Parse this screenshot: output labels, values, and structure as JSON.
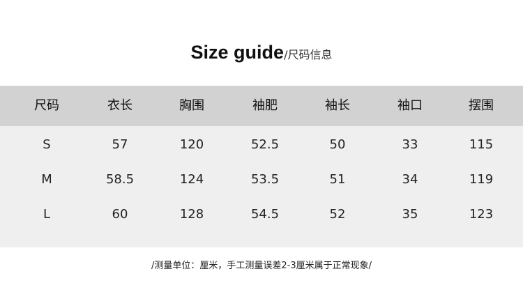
{
  "title": {
    "en": "Size guide",
    "cn": "/尺码信息"
  },
  "table": {
    "headers": [
      "尺码",
      "衣长",
      "胸围",
      "袖肥",
      "袖长",
      "袖口",
      "摆围"
    ],
    "rows": [
      [
        "S",
        "57",
        "120",
        "52.5",
        "50",
        "33",
        "115"
      ],
      [
        "M",
        "58.5",
        "124",
        "53.5",
        "51",
        "34",
        "119"
      ],
      [
        "L",
        "60",
        "128",
        "54.5",
        "52",
        "35",
        "123"
      ]
    ]
  },
  "note": "/测量单位：厘米，手工测量误差2-3厘米属于正常现象/",
  "colors": {
    "header_bg": "#d2d2d2",
    "body_bg": "#efefef"
  }
}
